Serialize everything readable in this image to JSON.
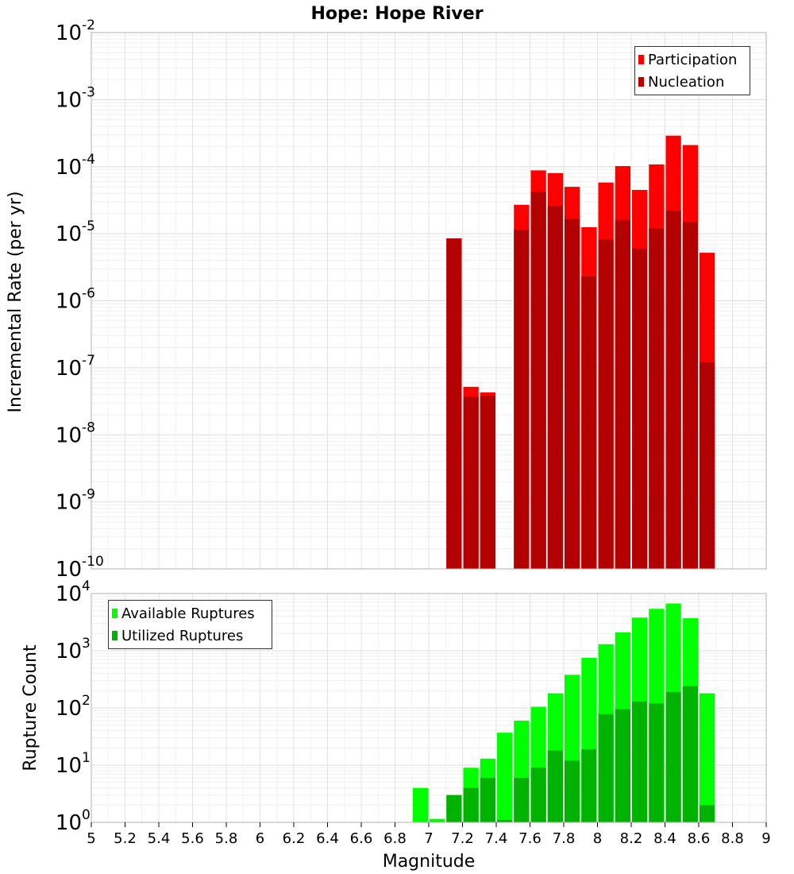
{
  "title": "Hope: Hope River",
  "colors": {
    "participation": "#ff0000",
    "nucleation": "#b30000",
    "available": "#00ff00",
    "utilized": "#00b300",
    "grid": "#e6e6e6",
    "frame": "#b0b0b0"
  },
  "chart_data": [
    {
      "type": "bar",
      "ylabel": "Incremental Rate (per yr)",
      "yscale": "log",
      "ylim": [
        1e-10,
        0.01
      ],
      "y_ticks": [
        {
          "base": "10",
          "exp": "-10",
          "value": 1e-10
        },
        {
          "base": "10",
          "exp": "-9",
          "value": 1e-09
        },
        {
          "base": "10",
          "exp": "-8",
          "value": 1e-08
        },
        {
          "base": "10",
          "exp": "-7",
          "value": 1e-07
        },
        {
          "base": "10",
          "exp": "-6",
          "value": 1e-06
        },
        {
          "base": "10",
          "exp": "-5",
          "value": 1e-05
        },
        {
          "base": "10",
          "exp": "-4",
          "value": 0.0001
        },
        {
          "base": "10",
          "exp": "-3",
          "value": 0.001
        },
        {
          "base": "10",
          "exp": "-2",
          "value": 0.01
        }
      ],
      "xlim": [
        5,
        9
      ],
      "legend": "top-right",
      "series": [
        {
          "name": "Participation",
          "x": [
            7.15,
            7.25,
            7.35,
            7.55,
            7.65,
            7.75,
            7.85,
            7.95,
            8.05,
            8.15,
            8.25,
            8.35,
            8.45,
            8.55,
            8.65
          ],
          "values": [
            8.5e-06,
            5.2e-08,
            4.3e-08,
            2.7e-05,
            8.8e-05,
            8e-05,
            5e-05,
            1.25e-05,
            5.8e-05,
            0.000102,
            4.5e-05,
            0.000108,
            0.00029,
            0.00021,
            5.2e-06
          ]
        },
        {
          "name": "Nucleation",
          "x": [
            7.15,
            7.25,
            7.35,
            7.55,
            7.65,
            7.75,
            7.85,
            7.95,
            8.05,
            8.15,
            8.25,
            8.35,
            8.45,
            8.55,
            8.65
          ],
          "values": [
            8.5e-06,
            3.7e-08,
            3.8e-08,
            1.15e-05,
            4.2e-05,
            2.6e-05,
            1.65e-05,
            2.3e-06,
            8.2e-06,
            1.6e-05,
            6e-06,
            1.2e-05,
            2.2e-05,
            1.5e-05,
            1.2e-07
          ]
        }
      ]
    },
    {
      "type": "bar",
      "ylabel": "Rupture Count",
      "xlabel": "Magnitude",
      "yscale": "log",
      "ylim": [
        1,
        10000
      ],
      "y_ticks": [
        {
          "base": "10",
          "exp": "0",
          "value": 1
        },
        {
          "base": "10",
          "exp": "1",
          "value": 10
        },
        {
          "base": "10",
          "exp": "2",
          "value": 100
        },
        {
          "base": "10",
          "exp": "3",
          "value": 1000
        },
        {
          "base": "10",
          "exp": "4",
          "value": 10000
        }
      ],
      "xlim": [
        5,
        9
      ],
      "x_ticks": [
        "5",
        "5.2",
        "5.4",
        "5.6",
        "5.8",
        "6",
        "6.2",
        "6.4",
        "6.6",
        "6.8",
        "7",
        "7.2",
        "7.4",
        "7.6",
        "7.8",
        "8",
        "8.2",
        "8.4",
        "8.6",
        "8.8",
        "9"
      ],
      "legend": "top-left",
      "series": [
        {
          "name": "Available Ruptures",
          "x": [
            6.95,
            7.05,
            7.15,
            7.25,
            7.35,
            7.45,
            7.55,
            7.65,
            7.75,
            7.85,
            7.95,
            8.05,
            8.15,
            8.25,
            8.35,
            8.45,
            8.55,
            8.65
          ],
          "values": [
            4,
            1.15,
            3,
            9,
            13,
            37,
            60,
            105,
            180,
            380,
            750,
            1300,
            2100,
            3800,
            5400,
            6700,
            3700,
            180
          ]
        },
        {
          "name": "Utilized Ruptures",
          "x": [
            7.15,
            7.25,
            7.35,
            7.45,
            7.55,
            7.65,
            7.75,
            7.85,
            7.95,
            8.05,
            8.15,
            8.25,
            8.35,
            8.45,
            8.55,
            8.65
          ],
          "values": [
            3,
            4,
            6,
            1.1,
            6,
            9,
            18,
            12,
            19,
            78,
            95,
            130,
            120,
            190,
            240,
            2
          ]
        }
      ]
    }
  ]
}
